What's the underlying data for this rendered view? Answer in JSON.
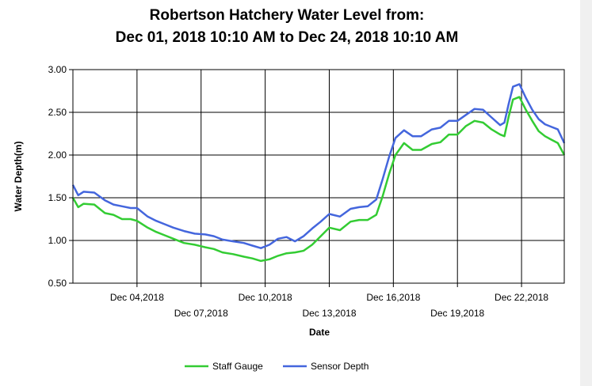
{
  "chart_data": {
    "type": "line",
    "title_line1": "Robertson Hatchery Water Level from:",
    "title_line2": "Dec 01, 2018 10:10 AM to Dec 24, 2018 10:10 AM",
    "xlabel": "Date",
    "ylabel": "Water Depth(m)",
    "ylim": [
      0.5,
      3.0
    ],
    "xlim": [
      0,
      23
    ],
    "grid": true,
    "legend_position": "bottom",
    "y_ticks": [
      "0.50",
      "1.00",
      "1.50",
      "2.00",
      "2.50",
      "3.00"
    ],
    "x_ticks": [
      {
        "day": 3,
        "label": "Dec 04,2018",
        "row": 1
      },
      {
        "day": 6,
        "label": "Dec 07,2018",
        "row": 2
      },
      {
        "day": 9,
        "label": "Dec 10,2018",
        "row": 1
      },
      {
        "day": 12,
        "label": "Dec 13,2018",
        "row": 2
      },
      {
        "day": 15,
        "label": "Dec 16,2018",
        "row": 1
      },
      {
        "day": 18,
        "label": "Dec 19,2018",
        "row": 2
      },
      {
        "day": 21,
        "label": "Dec 22,2018",
        "row": 1
      }
    ],
    "series": [
      {
        "name": "Staff Gauge",
        "color": "#33cc33",
        "x": [
          0,
          0.25,
          0.5,
          1.0,
          1.5,
          1.9,
          2.3,
          2.7,
          3.0,
          3.5,
          3.9,
          4.3,
          4.7,
          5.2,
          5.7,
          6.2,
          6.6,
          7.0,
          7.5,
          8.0,
          8.4,
          8.8,
          9.2,
          9.6,
          10.0,
          10.4,
          10.8,
          11.2,
          11.6,
          12.0,
          12.5,
          13.0,
          13.4,
          13.8,
          14.2,
          14.5,
          14.8,
          15.1,
          15.5,
          15.9,
          16.3,
          16.8,
          17.2,
          17.6,
          18.0,
          18.4,
          18.8,
          19.2,
          19.6,
          20.0,
          20.2,
          20.4,
          20.6,
          20.9,
          21.2,
          21.5,
          21.8,
          22.1,
          22.4,
          22.7,
          23.0
        ],
        "y": [
          1.5,
          1.39,
          1.43,
          1.42,
          1.32,
          1.3,
          1.25,
          1.25,
          1.23,
          1.15,
          1.1,
          1.06,
          1.02,
          0.97,
          0.95,
          0.92,
          0.9,
          0.86,
          0.84,
          0.81,
          0.79,
          0.76,
          0.78,
          0.82,
          0.85,
          0.86,
          0.88,
          0.95,
          1.05,
          1.15,
          1.12,
          1.22,
          1.24,
          1.24,
          1.3,
          1.52,
          1.78,
          2.0,
          2.14,
          2.06,
          2.06,
          2.13,
          2.15,
          2.24,
          2.24,
          2.34,
          2.4,
          2.38,
          2.3,
          2.24,
          2.22,
          2.45,
          2.65,
          2.68,
          2.53,
          2.4,
          2.28,
          2.22,
          2.18,
          2.14,
          2.0
        ]
      },
      {
        "name": "Sensor Depth",
        "color": "#4466dd",
        "x": [
          0,
          0.25,
          0.5,
          1.0,
          1.5,
          1.9,
          2.3,
          2.7,
          3.0,
          3.5,
          3.9,
          4.3,
          4.7,
          5.2,
          5.7,
          6.2,
          6.6,
          7.0,
          7.5,
          8.0,
          8.4,
          8.8,
          9.2,
          9.6,
          10.0,
          10.4,
          10.8,
          11.2,
          11.6,
          12.0,
          12.5,
          13.0,
          13.4,
          13.8,
          14.2,
          14.5,
          14.8,
          15.1,
          15.5,
          15.9,
          16.3,
          16.8,
          17.2,
          17.6,
          18.0,
          18.4,
          18.8,
          19.2,
          19.6,
          20.0,
          20.2,
          20.4,
          20.6,
          20.9,
          21.2,
          21.5,
          21.8,
          22.1,
          22.4,
          22.7,
          23.0
        ],
        "y": [
          1.65,
          1.53,
          1.57,
          1.56,
          1.47,
          1.42,
          1.4,
          1.38,
          1.38,
          1.28,
          1.23,
          1.19,
          1.15,
          1.11,
          1.08,
          1.07,
          1.05,
          1.01,
          0.99,
          0.97,
          0.94,
          0.91,
          0.95,
          1.02,
          1.04,
          0.99,
          1.05,
          1.14,
          1.22,
          1.31,
          1.28,
          1.37,
          1.39,
          1.4,
          1.48,
          1.72,
          1.98,
          2.2,
          2.29,
          2.22,
          2.22,
          2.3,
          2.32,
          2.4,
          2.4,
          2.47,
          2.54,
          2.53,
          2.44,
          2.35,
          2.38,
          2.6,
          2.8,
          2.83,
          2.67,
          2.53,
          2.42,
          2.36,
          2.33,
          2.3,
          2.14
        ]
      }
    ]
  }
}
